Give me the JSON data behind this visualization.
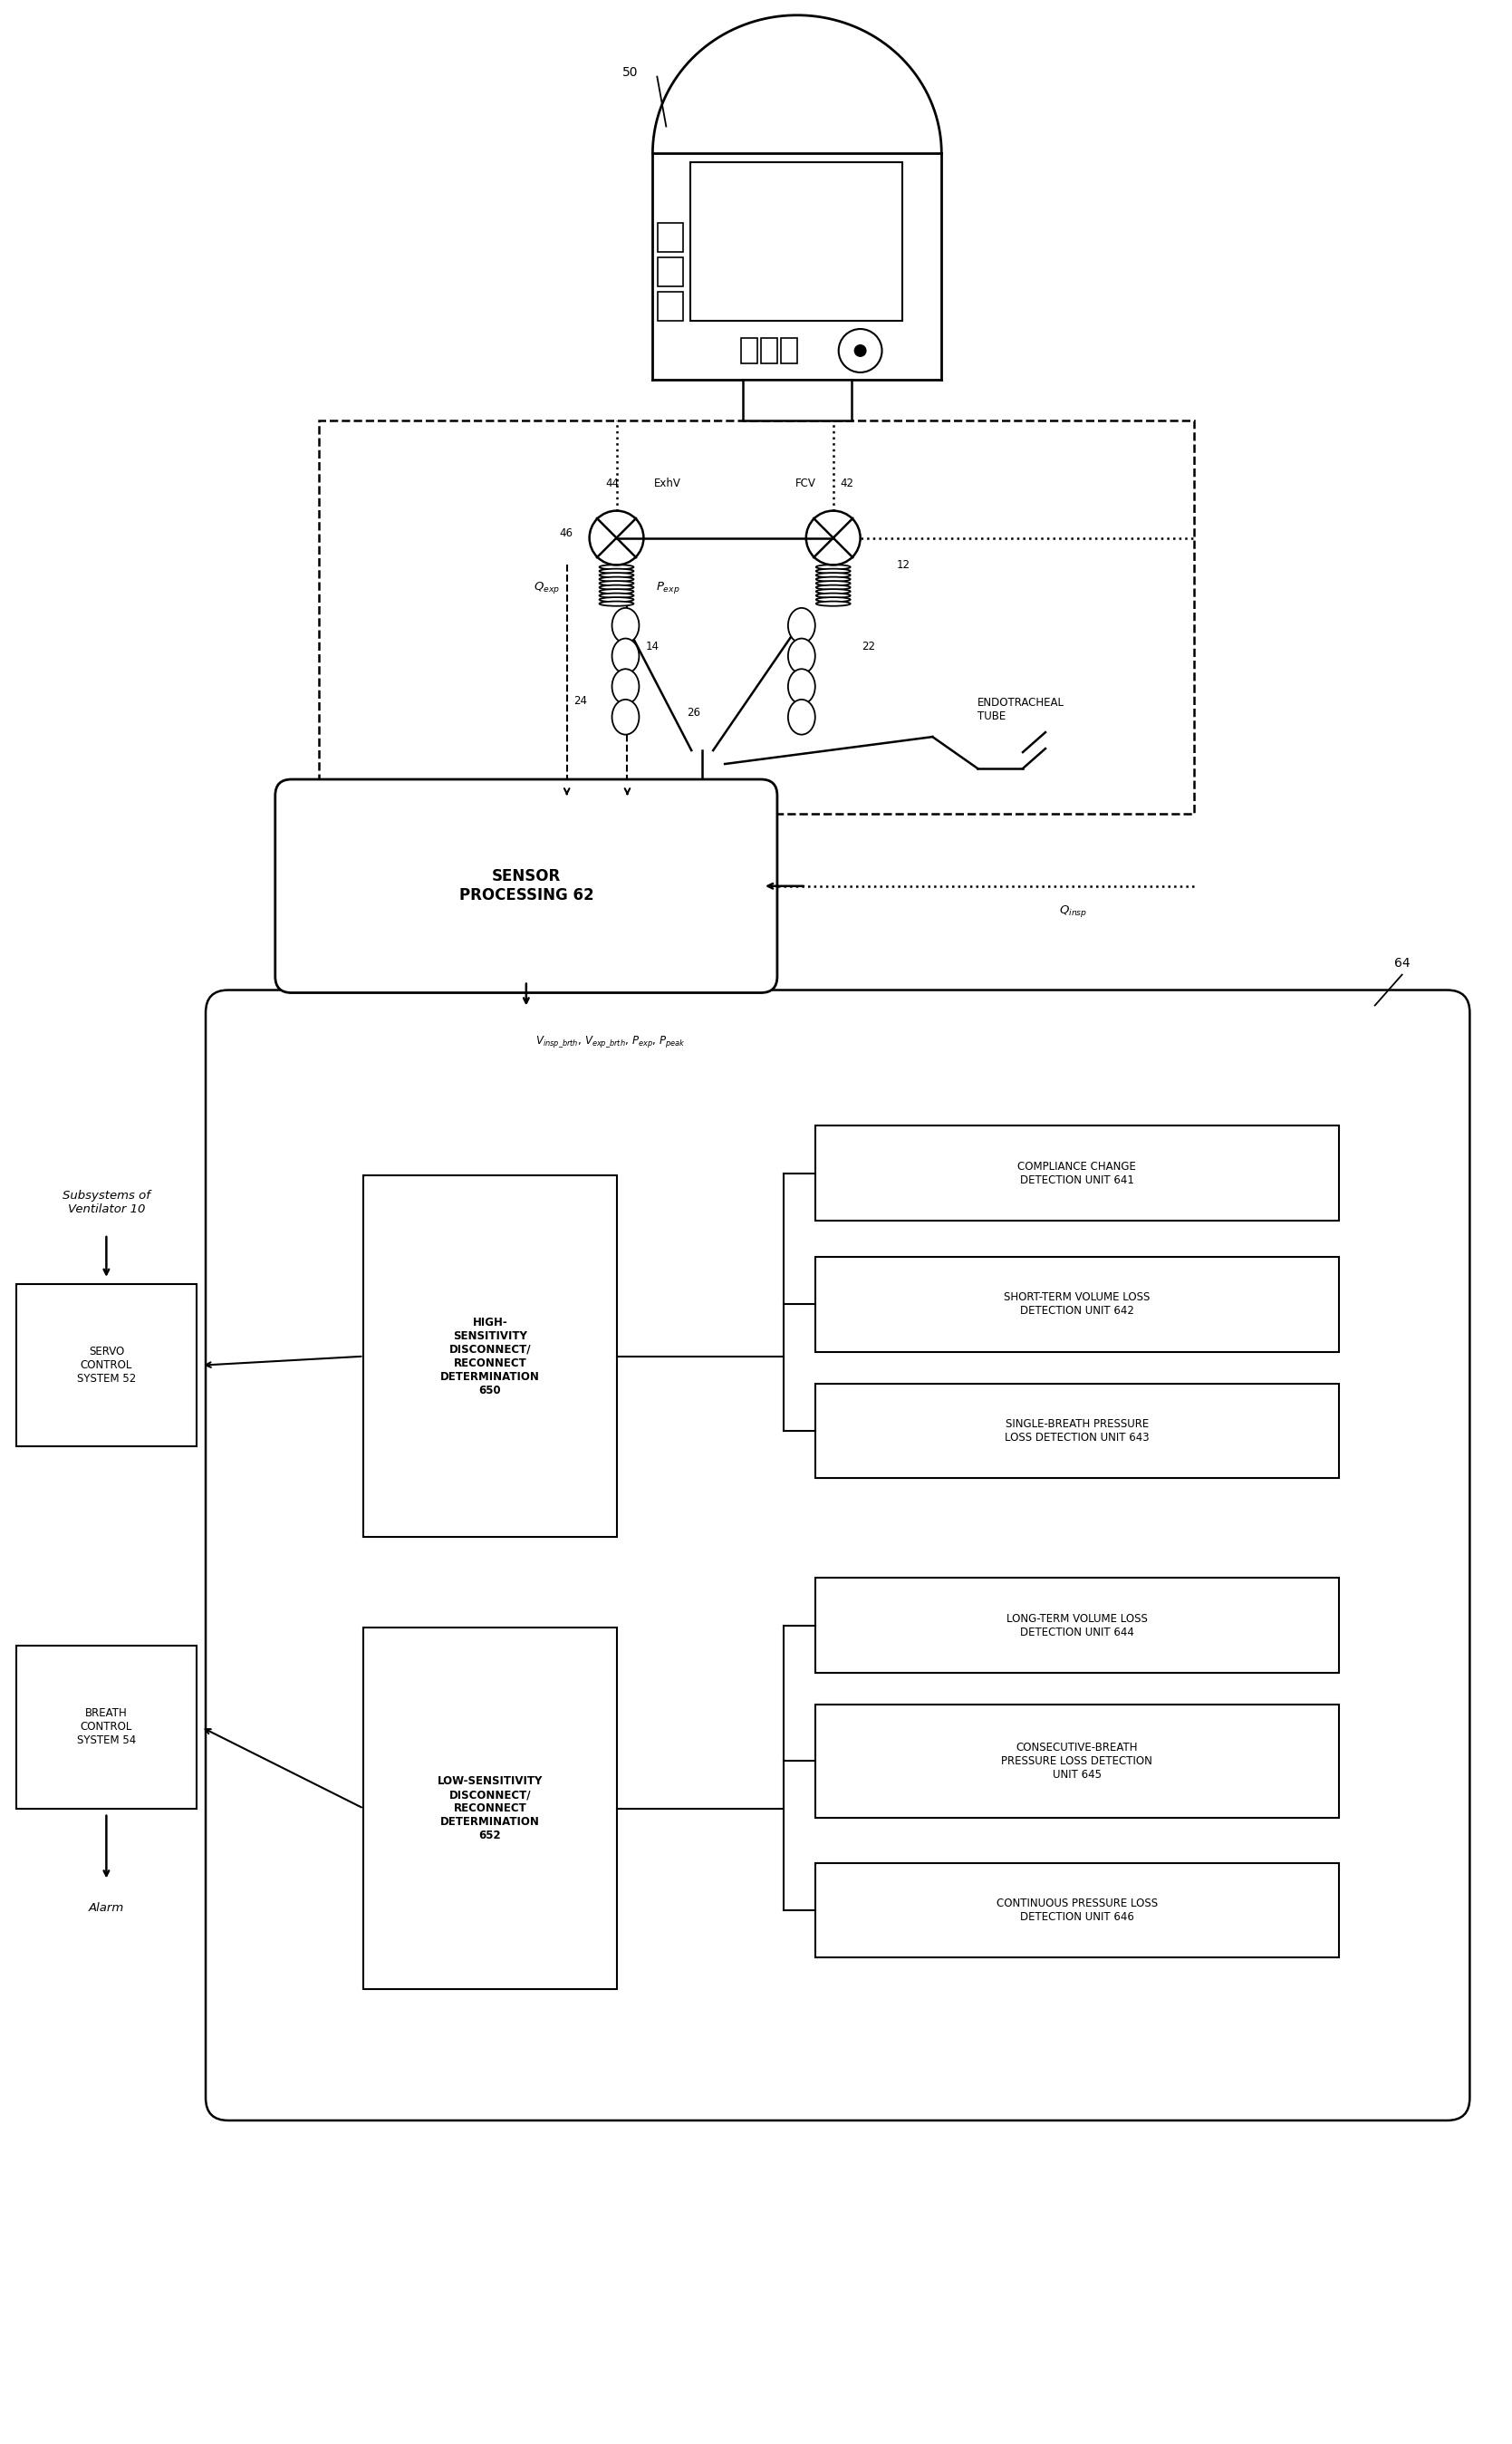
{
  "bg_color": "#ffffff",
  "line_color": "#000000",
  "fig_width": 16.69,
  "fig_height": 26.97,
  "ventilator_label": "50",
  "exhv_label": "ExhV",
  "fcv_label": "FCV",
  "valve_left_num": "44",
  "valve_right_num": "42",
  "sensor_num": "46",
  "tube_left_num": "14",
  "tube_right_num": "12",
  "connector_left_num": "24",
  "connector_right_num": "22",
  "ypiece_num": "26",
  "endotracheal_label": "ENDOTRACHEAL\nTUBE",
  "qexp_label": "Q_exp",
  "pexp_label": "P_exp",
  "qinsp_label": "Q_insp",
  "sensor_box_label": "SENSOR\nPROCESSING 62",
  "signal_label": "V_insp_brth, V_exp_brth, P_exp, P_peak",
  "system_num": "64",
  "servo_label": "SERVO\nCONTROL\nSYSTEM 52",
  "breath_label": "BREATH\nCONTROL\nSYSTEM 54",
  "subsystems_label": "Subsystems of\nVentilator 10",
  "alarm_label": "Alarm",
  "high_sens_label": "HIGH-\nSENSITIVITY\nDISCONNECT/\nRECONNECT\nDETERMINATION\n650",
  "low_sens_label": "LOW-SENSITIVITY\nDISCONNECT/\nRECONNECT\nDETERMINATION\n652",
  "unit641_label": "COMPLIANCE CHANGE\nDETECTION UNIT 641",
  "unit642_label": "SHORT-TERM VOLUME LOSS\nDETECTION UNIT 642",
  "unit643_label": "SINGLE-BREATH PRESSURE\nLOSS DETECTION UNIT 643",
  "unit644_label": "LONG-TERM VOLUME LOSS\nDETECTION UNIT 644",
  "unit645_label": "CONSECUTIVE-BREATH\nPRESSURE LOSS DETECTION\nUNIT 645",
  "unit646_label": "CONTINUOUS PRESSURE LOSS\nDETECTION UNIT 646"
}
